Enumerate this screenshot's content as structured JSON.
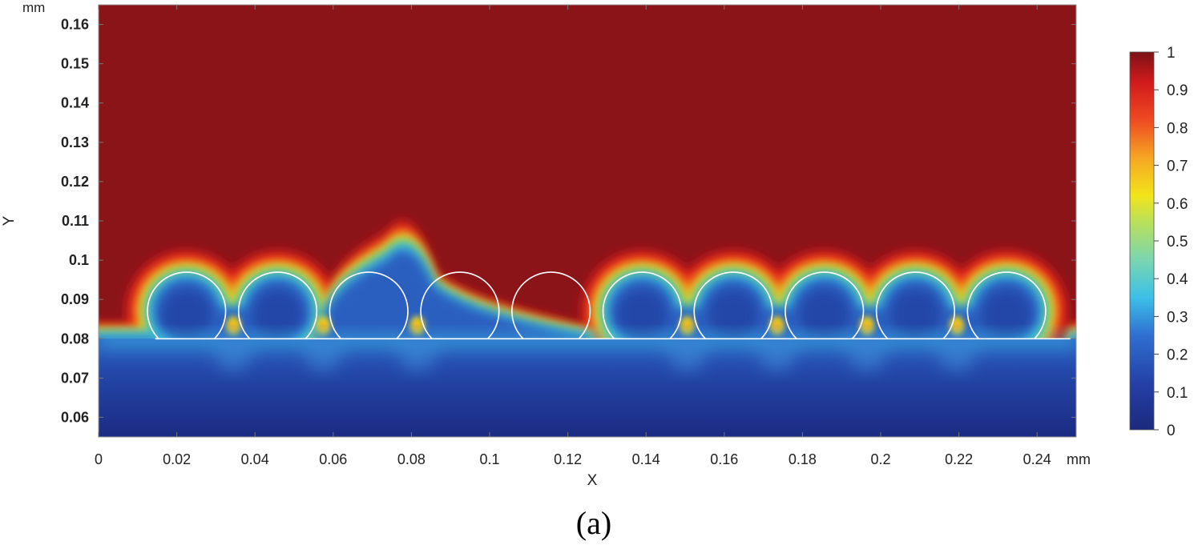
{
  "chart_data": {
    "type": "heatmap",
    "xlabel": "X",
    "ylabel": "Y",
    "x_unit": "mm",
    "y_unit": "mm",
    "xlim": [
      0,
      0.25
    ],
    "ylim": [
      0.055,
      0.165
    ],
    "x_ticks": [
      0,
      0.02,
      0.04,
      0.06,
      0.08,
      0.1,
      0.12,
      0.14,
      0.16,
      0.18,
      0.2,
      0.22,
      0.24
    ],
    "x_tick_labels": [
      "0",
      "0.02",
      "0.04",
      "0.06",
      "0.08",
      "0.1",
      "0.12",
      "0.14",
      "0.16",
      "0.18",
      "0.2",
      "0.22",
      "0.24"
    ],
    "y_ticks": [
      0.06,
      0.07,
      0.08,
      0.09,
      0.1,
      0.11,
      0.12,
      0.13,
      0.14,
      0.15,
      0.16
    ],
    "y_tick_labels": [
      "0.06",
      "0.07",
      "0.08",
      "0.09",
      "0.1",
      "0.11",
      "0.12",
      "0.13",
      "0.14",
      "0.15",
      "0.16"
    ],
    "colorbar": {
      "range": [
        0,
        1
      ],
      "ticks": [
        0,
        0.1,
        0.2,
        0.3,
        0.4,
        0.5,
        0.6,
        0.7,
        0.8,
        0.9,
        1
      ],
      "tick_labels": [
        "0",
        "0.1",
        "0.2",
        "0.3",
        "0.4",
        "0.5",
        "0.6",
        "0.7",
        "0.8",
        "0.9",
        "1"
      ],
      "colormap": "rainbow"
    },
    "substrate_line_y": 0.08,
    "bead_radius": 0.01,
    "bead_center_y": 0.087,
    "beads_x": [
      0.0225,
      0.0458,
      0.0691,
      0.0924,
      0.1157,
      0.139,
      0.1623,
      0.1856,
      0.2089,
      0.2322
    ],
    "filled_beads_x": [
      0.0225,
      0.0458,
      0.139,
      0.1623,
      0.1856,
      0.2089,
      0.2322
    ],
    "field_description_values": {
      "top_region": 1.0,
      "bottom_region": 0.05,
      "interface_band": 0.4
    },
    "caption": "(a)"
  },
  "colors": {
    "red_dark": "#8b1419",
    "red": "#e41d1d",
    "orange": "#f5821f",
    "yellow": "#f4e419",
    "green": "#7dcb5a",
    "cyan": "#3cc8e6",
    "blue": "#2a5fc0",
    "navy": "#1e2a80",
    "circle_stroke": "#ffffff"
  }
}
